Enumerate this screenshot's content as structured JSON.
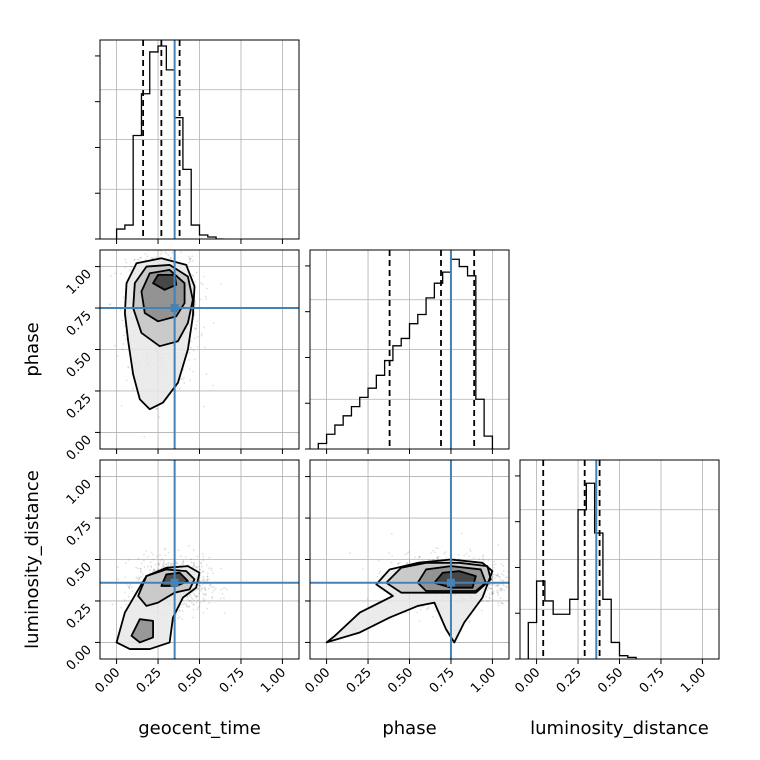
{
  "chart_data": {
    "type": "corner",
    "parameters": [
      "geocent_time",
      "phase",
      "luminosity_distance"
    ],
    "axis_ticks": [
      "0.00",
      "0.25",
      "0.50",
      "0.75",
      "1.00"
    ],
    "axis_range": [
      -0.1,
      1.1
    ],
    "grid": true,
    "truths": {
      "geocent_time": 0.35,
      "phase": 0.75,
      "luminosity_distance": 0.36
    },
    "truth_color": "#4682b4",
    "quantiles": {
      "geocent_time": [
        0.16,
        0.27,
        0.38
      ],
      "phase": [
        0.38,
        0.69,
        0.89
      ],
      "luminosity_distance": [
        0.04,
        0.29,
        0.38
      ]
    },
    "histograms": {
      "geocent_time": {
        "edges": [
          0.0,
          0.05,
          0.1,
          0.15,
          0.2,
          0.25,
          0.3,
          0.35,
          0.4,
          0.45,
          0.5,
          0.55,
          0.6,
          0.65
        ],
        "values": [
          5,
          7,
          52,
          73,
          94,
          97,
          85,
          61,
          35,
          7,
          2,
          1,
          0
        ],
        "ymax": 100
      },
      "phase": {
        "edges": [
          -0.05,
          0.0,
          0.05,
          0.1,
          0.15,
          0.2,
          0.25,
          0.3,
          0.35,
          0.4,
          0.45,
          0.5,
          0.55,
          0.6,
          0.65,
          0.7,
          0.75,
          0.8,
          0.85,
          0.9,
          0.95,
          1.0
        ],
        "values": [
          3,
          8,
          13,
          18,
          23,
          28,
          33,
          40,
          48,
          56,
          60,
          68,
          73,
          82,
          90,
          96,
          103,
          99,
          94,
          27,
          7
        ],
        "ymax": 108
      },
      "luminosity_distance": {
        "edges": [
          -0.05,
          0.0,
          0.05,
          0.1,
          0.15,
          0.2,
          0.25,
          0.3,
          0.35,
          0.4,
          0.45,
          0.5,
          0.55,
          0.6
        ],
        "values": [
          22,
          47,
          35,
          27,
          27,
          36,
          90,
          106,
          76,
          36,
          10,
          2,
          1
        ],
        "ymax": 120
      }
    },
    "pairs": [
      {
        "x": "geocent_time",
        "y": "phase",
        "contours": [
          [
            [
              0.14,
              0.2
            ],
            [
              0.1,
              0.35
            ],
            [
              0.07,
              0.55
            ],
            [
              0.05,
              0.72
            ],
            [
              0.06,
              0.9
            ],
            [
              0.12,
              1.02
            ],
            [
              0.27,
              1.05
            ],
            [
              0.42,
              1.01
            ],
            [
              0.47,
              0.88
            ],
            [
              0.46,
              0.7
            ],
            [
              0.43,
              0.5
            ],
            [
              0.37,
              0.3
            ],
            [
              0.28,
              0.18
            ],
            [
              0.2,
              0.14
            ]
          ],
          [
            [
              0.15,
              0.6
            ],
            [
              0.1,
              0.75
            ],
            [
              0.11,
              0.9
            ],
            [
              0.18,
              1.0
            ],
            [
              0.32,
              1.01
            ],
            [
              0.43,
              0.94
            ],
            [
              0.46,
              0.8
            ],
            [
              0.43,
              0.66
            ],
            [
              0.37,
              0.55
            ],
            [
              0.26,
              0.52
            ]
          ],
          [
            [
              0.17,
              0.72
            ],
            [
              0.15,
              0.85
            ],
            [
              0.2,
              0.96
            ],
            [
              0.32,
              0.98
            ],
            [
              0.41,
              0.9
            ],
            [
              0.41,
              0.78
            ],
            [
              0.36,
              0.7
            ],
            [
              0.25,
              0.67
            ]
          ],
          [
            [
              0.22,
              0.9
            ],
            [
              0.25,
              0.95
            ],
            [
              0.35,
              0.95
            ],
            [
              0.36,
              0.89
            ],
            [
              0.29,
              0.86
            ]
          ]
        ],
        "center": [
          0.28,
          0.72
        ],
        "spread": [
          0.11,
          0.22
        ]
      },
      {
        "x": "geocent_time",
        "y": "luminosity_distance",
        "contours": [
          [
            [
              0.0,
              0.0
            ],
            [
              0.05,
              0.18
            ],
            [
              0.12,
              0.3
            ],
            [
              0.18,
              0.4
            ],
            [
              0.3,
              0.45
            ],
            [
              0.43,
              0.46
            ],
            [
              0.5,
              0.42
            ],
            [
              0.48,
              0.33
            ],
            [
              0.4,
              0.27
            ],
            [
              0.34,
              0.15
            ],
            [
              0.32,
              0.0
            ],
            [
              0.2,
              -0.04
            ],
            [
              0.08,
              -0.04
            ]
          ],
          [
            [
              0.13,
              0.28
            ],
            [
              0.18,
              0.4
            ],
            [
              0.3,
              0.44
            ],
            [
              0.42,
              0.43
            ],
            [
              0.47,
              0.38
            ],
            [
              0.44,
              0.32
            ],
            [
              0.35,
              0.3
            ],
            [
              0.25,
              0.24
            ],
            [
              0.18,
              0.22
            ]
          ],
          [
            [
              0.09,
              0.04
            ],
            [
              0.14,
              0.14
            ],
            [
              0.22,
              0.13
            ],
            [
              0.22,
              0.03
            ],
            [
              0.14,
              0.0
            ]
          ],
          [
            [
              0.27,
              0.34
            ],
            [
              0.3,
              0.41
            ],
            [
              0.38,
              0.42
            ],
            [
              0.43,
              0.37
            ],
            [
              0.36,
              0.34
            ]
          ]
        ],
        "center": [
          0.34,
          0.35
        ],
        "spread": [
          0.11,
          0.08
        ]
      },
      {
        "x": "phase",
        "y": "luminosity_distance",
        "contours": [
          [
            [
              0.0,
              0.0
            ],
            [
              0.2,
              0.06
            ],
            [
              0.38,
              0.15
            ],
            [
              0.55,
              0.22
            ],
            [
              0.65,
              0.24
            ],
            [
              0.72,
              0.08
            ],
            [
              0.77,
              0.0
            ],
            [
              0.83,
              0.12
            ],
            [
              0.94,
              0.27
            ],
            [
              1.0,
              0.43
            ],
            [
              0.94,
              0.48
            ],
            [
              0.75,
              0.5
            ],
            [
              0.55,
              0.48
            ],
            [
              0.38,
              0.44
            ],
            [
              0.3,
              0.35
            ],
            [
              0.4,
              0.28
            ],
            [
              0.2,
              0.18
            ],
            [
              0.05,
              0.04
            ]
          ],
          [
            [
              0.36,
              0.36
            ],
            [
              0.45,
              0.45
            ],
            [
              0.6,
              0.48
            ],
            [
              0.8,
              0.48
            ],
            [
              0.97,
              0.46
            ],
            [
              0.99,
              0.38
            ],
            [
              0.9,
              0.3
            ],
            [
              0.75,
              0.3
            ],
            [
              0.6,
              0.3
            ],
            [
              0.45,
              0.3
            ]
          ],
          [
            [
              0.55,
              0.36
            ],
            [
              0.6,
              0.44
            ],
            [
              0.75,
              0.46
            ],
            [
              0.93,
              0.44
            ],
            [
              0.96,
              0.36
            ],
            [
              0.9,
              0.31
            ],
            [
              0.75,
              0.31
            ],
            [
              0.6,
              0.31
            ]
          ],
          [
            [
              0.65,
              0.36
            ],
            [
              0.7,
              0.42
            ],
            [
              0.8,
              0.43
            ],
            [
              0.9,
              0.4
            ],
            [
              0.88,
              0.33
            ],
            [
              0.75,
              0.33
            ]
          ]
        ],
        "center": [
          0.75,
          0.37
        ],
        "spread": [
          0.18,
          0.08
        ]
      }
    ]
  }
}
